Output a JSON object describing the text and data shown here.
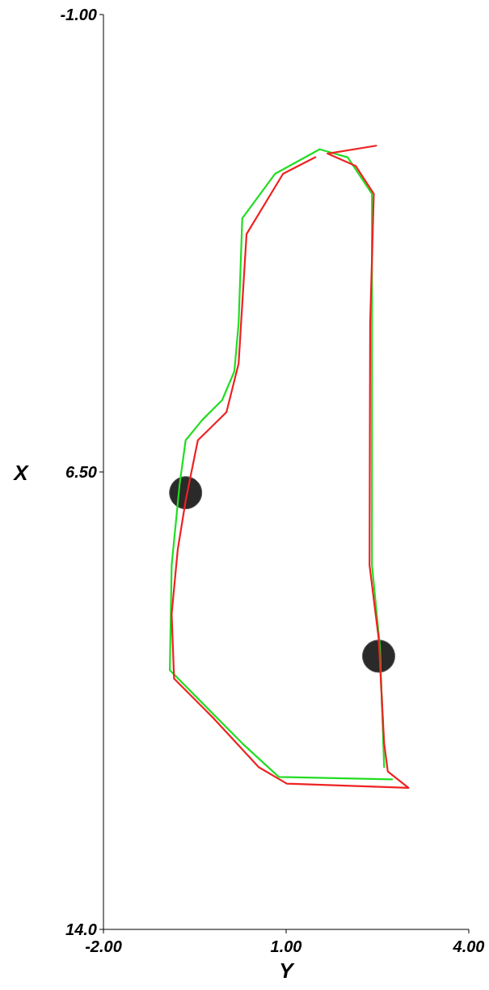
{
  "chart_data": {
    "type": "line",
    "xlabel": "Y",
    "ylabel": "X",
    "xlim": [
      -2,
      4
    ],
    "xticks": [
      {
        "value": -2,
        "label": "-2.00"
      },
      {
        "value": 1,
        "label": "1.00"
      },
      {
        "value": 4,
        "label": "4.00"
      }
    ],
    "ylim": [
      14,
      -1
    ],
    "yticks": [
      {
        "value": -1,
        "label": "-1.00"
      },
      {
        "value": 6.5,
        "label": "6.50"
      },
      {
        "value": 14,
        "label": "14.0"
      }
    ],
    "grid": false,
    "series": [
      {
        "color": "#22dd22",
        "x": [
          2.74,
          0.88,
          0.28,
          -0.91,
          -0.88,
          -0.75,
          -0.65,
          -0.38,
          -0.05,
          0.15,
          0.22,
          0.28,
          0.82,
          1.55,
          2.01,
          2.41,
          2.41,
          2.41,
          2.54,
          2.61
        ],
        "values": [
          11.54,
          11.5,
          10.95,
          9.75,
          8.03,
          6.71,
          5.98,
          5.65,
          5.32,
          4.85,
          4.06,
          2.34,
          1.61,
          1.21,
          1.34,
          1.94,
          4.06,
          8.03,
          9.36,
          11.34
        ]
      },
      {
        "color": "#ee2222",
        "x": [
          2.48,
          1.68,
          2.14,
          2.44,
          2.38,
          2.37,
          2.52,
          2.61,
          2.67,
          3.01,
          1.01,
          0.55,
          -0.18,
          -0.84,
          -0.88,
          -0.78,
          -0.65,
          -0.45,
          0.02,
          0.22,
          0.35,
          0.95,
          1.48
        ],
        "values": [
          1.15,
          1.28,
          1.48,
          1.94,
          4.06,
          8.03,
          9.23,
          10.95,
          11.41,
          11.68,
          11.61,
          11.34,
          10.55,
          9.89,
          8.83,
          7.77,
          6.97,
          5.98,
          5.52,
          4.72,
          2.6,
          1.61,
          1.34
        ]
      },
      {
        "type": "scatter",
        "color": "#2a2a2a",
        "marker": "circle",
        "x": [
          -0.65,
          2.52
        ],
        "values": [
          6.84,
          9.52
        ]
      }
    ]
  }
}
